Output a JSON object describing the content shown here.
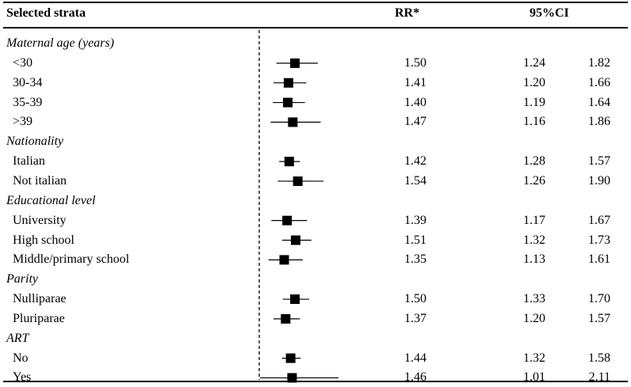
{
  "headers": {
    "strata": "Selected strata",
    "rr": "RR*",
    "ci": "95%CI"
  },
  "colors": {
    "ink": "#000000",
    "background": "#ffffff"
  },
  "chart_data": {
    "type": "forest",
    "reference_line": 1,
    "reference_style": "dashed",
    "x_scale": "linear",
    "rows": [
      {
        "kind": "group",
        "label": "Maternal age (years)"
      },
      {
        "kind": "item",
        "label": "<30",
        "rr": 1.5,
        "lo": 1.24,
        "hi": 1.82,
        "rr_text": "1.50",
        "lo_text": "1.24",
        "hi_text": "1.82"
      },
      {
        "kind": "item",
        "label": "30-34",
        "rr": 1.41,
        "lo": 1.2,
        "hi": 1.66,
        "rr_text": "1.41",
        "lo_text": "1.20",
        "hi_text": "1.66"
      },
      {
        "kind": "item",
        "label": "35-39",
        "rr": 1.4,
        "lo": 1.19,
        "hi": 1.64,
        "rr_text": "1.40",
        "lo_text": "1.19",
        "hi_text": "1.64"
      },
      {
        "kind": "item",
        "label": ">39",
        "rr": 1.47,
        "lo": 1.16,
        "hi": 1.86,
        "rr_text": "1.47",
        "lo_text": "1.16",
        "hi_text": "1.86"
      },
      {
        "kind": "group",
        "label": "Nationality"
      },
      {
        "kind": "item",
        "label": "Italian",
        "rr": 1.42,
        "lo": 1.28,
        "hi": 1.57,
        "rr_text": "1.42",
        "lo_text": "1.28",
        "hi_text": "1.57"
      },
      {
        "kind": "item",
        "label": "Not italian",
        "rr": 1.54,
        "lo": 1.26,
        "hi": 1.9,
        "rr_text": "1.54",
        "lo_text": "1.26",
        "hi_text": "1.90"
      },
      {
        "kind": "group",
        "label": "Educational level"
      },
      {
        "kind": "item",
        "label": "University",
        "rr": 1.39,
        "lo": 1.17,
        "hi": 1.67,
        "rr_text": "1.39",
        "lo_text": "1.17",
        "hi_text": "1.67"
      },
      {
        "kind": "item",
        "label": "High school",
        "rr": 1.51,
        "lo": 1.32,
        "hi": 1.73,
        "rr_text": "1.51",
        "lo_text": "1.32",
        "hi_text": "1.73"
      },
      {
        "kind": "item",
        "label": "Middle/primary school",
        "rr": 1.35,
        "lo": 1.13,
        "hi": 1.61,
        "rr_text": "1.35",
        "lo_text": "1.13",
        "hi_text": "1.61"
      },
      {
        "kind": "group",
        "label": "Parity"
      },
      {
        "kind": "item",
        "label": "Nulliparae",
        "rr": 1.5,
        "lo": 1.33,
        "hi": 1.7,
        "rr_text": "1.50",
        "lo_text": "1.33",
        "hi_text": "1.70"
      },
      {
        "kind": "item",
        "label": "Pluriparae",
        "rr": 1.37,
        "lo": 1.2,
        "hi": 1.57,
        "rr_text": "1.37",
        "lo_text": "1.20",
        "hi_text": "1.57"
      },
      {
        "kind": "group",
        "label": "ART"
      },
      {
        "kind": "item",
        "label": "No",
        "rr": 1.44,
        "lo": 1.32,
        "hi": 1.58,
        "rr_text": "1.44",
        "lo_text": "1.32",
        "hi_text": "1.58"
      },
      {
        "kind": "item",
        "label": "Yes",
        "rr": 1.46,
        "lo": 1.01,
        "hi": 2.11,
        "rr_text": "1.46",
        "lo_text": "1.01",
        "hi_text": "2.11"
      }
    ]
  }
}
